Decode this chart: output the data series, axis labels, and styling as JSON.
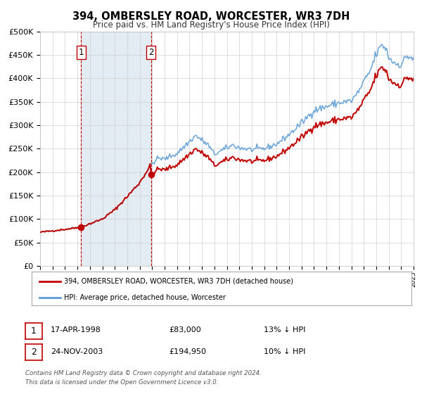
{
  "title": "394, OMBERSLEY ROAD, WORCESTER, WR3 7DH",
  "subtitle": "Price paid vs. HM Land Registry's House Price Index (HPI)",
  "legend_house": "394, OMBERSLEY ROAD, WORCESTER, WR3 7DH (detached house)",
  "legend_hpi": "HPI: Average price, detached house, Worcester",
  "footer_line1": "Contains HM Land Registry data © Crown copyright and database right 2024.",
  "footer_line2": "This data is licensed under the Open Government Licence v3.0.",
  "sale1_date": "17-APR-1998",
  "sale1_price": 83000,
  "sale1_pct": "13% ↓ HPI",
  "sale2_date": "24-NOV-2003",
  "sale2_price": 194950,
  "sale2_pct": "10% ↓ HPI",
  "sale1_year": 1998.29,
  "sale2_year": 2003.9,
  "hpi_color": "#5b9bd5",
  "house_color": "#c00000",
  "marker_color": "#c00000",
  "shading_color": "#dce6f1",
  "grid_color": "#d0d0d0",
  "bg_color": "#ffffff",
  "ymin": 0,
  "ymax": 500000,
  "xmin": 1995,
  "xmax": 2025
}
